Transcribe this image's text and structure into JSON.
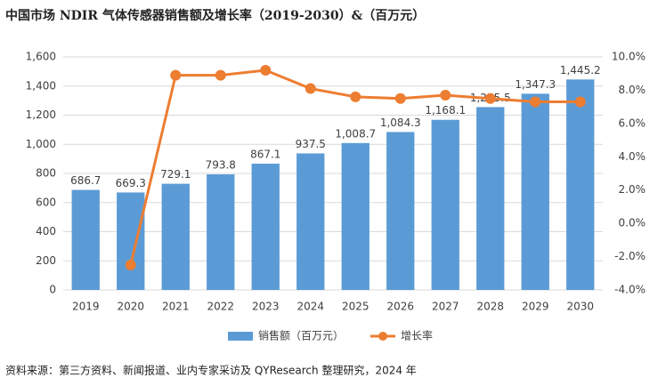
{
  "chart_data": {
    "type": "bar_line",
    "title": "中国市场 NDIR 气体传感器销售额及增长率（2019-2030）&（百万元）",
    "source": "资料来源：第三方资料、新闻报道、业内专家采访及 QYResearch 整理研究，2024 年",
    "categories": [
      "2019",
      "2020",
      "2021",
      "2022",
      "2023",
      "2024",
      "2025",
      "2026",
      "2027",
      "2028",
      "2029",
      "2030"
    ],
    "series": [
      {
        "name": "销售额（百万元）",
        "type": "bar",
        "color": "#5b9bd5",
        "values": [
          686.7,
          669.3,
          729.1,
          793.8,
          867.1,
          937.5,
          1008.7,
          1084.3,
          1168.1,
          1255.5,
          1347.3,
          1445.2
        ],
        "value_labels": [
          "686.7",
          "669.3",
          "729.1",
          "793.8",
          "867.1",
          "937.5",
          "1,008.7",
          "1,084.3",
          "1,168.1",
          "1,255.5",
          "1,347.3",
          "1,445.2"
        ]
      },
      {
        "name": "增长率",
        "type": "line",
        "axis": "y2",
        "color": "#ed7d31",
        "values": [
          null,
          -2.5,
          8.9,
          8.9,
          9.2,
          8.1,
          7.6,
          7.5,
          7.7,
          7.5,
          7.3,
          7.3
        ]
      }
    ],
    "ylim": [
      0,
      1600
    ],
    "yticks": [
      0,
      200,
      400,
      600,
      800,
      {
        "value": 1000,
        "label": "1,000"
      },
      {
        "value": 1200,
        "label": "1,200"
      },
      {
        "value": 1400,
        "label": "1,400"
      },
      {
        "value": 1600,
        "label": "1,600"
      }
    ],
    "y2lim": [
      -4,
      10
    ],
    "y2ticks": [
      {
        "value": -4,
        "label": "-4.0%"
      },
      {
        "value": -2,
        "label": "-2.0%"
      },
      {
        "value": 0,
        "label": "0.0%"
      },
      {
        "value": 2,
        "label": "2.0%"
      },
      {
        "value": 4,
        "label": "4.0%"
      },
      {
        "value": 6,
        "label": "6.0%"
      },
      {
        "value": 8,
        "label": "8.0%"
      },
      {
        "value": 10,
        "label": "10.0%"
      }
    ],
    "grid": true
  }
}
